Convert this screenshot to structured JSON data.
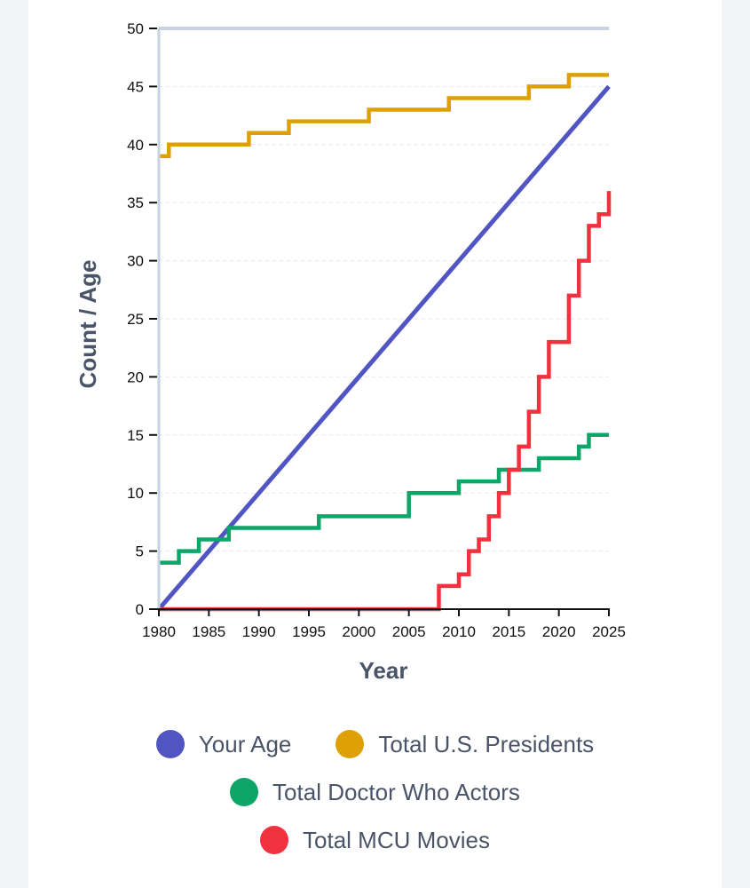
{
  "chart_data": {
    "type": "line",
    "title": "",
    "xlabel": "Year",
    "ylabel": "Count / Age",
    "xlim": [
      1980,
      2025
    ],
    "ylim": [
      0,
      50
    ],
    "x_ticks": [
      "1980",
      "1985",
      "1990",
      "1995",
      "2000",
      "2005",
      "2010",
      "2015",
      "2020",
      "2025"
    ],
    "y_ticks": [
      "0",
      "5",
      "10",
      "15",
      "20",
      "25",
      "30",
      "35",
      "40",
      "45",
      "50"
    ],
    "grid": true,
    "legend_position": "bottom",
    "series": [
      {
        "name": "Your Age",
        "color": "#5055c3",
        "step": false,
        "points": [
          [
            1980,
            0
          ],
          [
            2025,
            45
          ]
        ]
      },
      {
        "name": "Total U.S. Presidents",
        "color": "#dea006",
        "step": true,
        "points": [
          [
            1980,
            39
          ],
          [
            1981,
            40
          ],
          [
            1989,
            41
          ],
          [
            1993,
            42
          ],
          [
            2001,
            43
          ],
          [
            2009,
            44
          ],
          [
            2017,
            45
          ],
          [
            2021,
            46
          ],
          [
            2025,
            46
          ]
        ]
      },
      {
        "name": "Total Doctor Who Actors",
        "color": "#0da668",
        "step": true,
        "points": [
          [
            1980,
            4
          ],
          [
            1982,
            5
          ],
          [
            1984,
            6
          ],
          [
            1987,
            7
          ],
          [
            1996,
            8
          ],
          [
            2005,
            10
          ],
          [
            2010,
            11
          ],
          [
            2014,
            12
          ],
          [
            2018,
            13
          ],
          [
            2022,
            14
          ],
          [
            2023,
            15
          ],
          [
            2025,
            15
          ]
        ]
      },
      {
        "name": "Total MCU Movies",
        "color": "#f1313d",
        "step": true,
        "points": [
          [
            1980,
            0
          ],
          [
            2008,
            2
          ],
          [
            2010,
            3
          ],
          [
            2011,
            5
          ],
          [
            2012,
            6
          ],
          [
            2013,
            8
          ],
          [
            2014,
            10
          ],
          [
            2015,
            12
          ],
          [
            2016,
            14
          ],
          [
            2017,
            17
          ],
          [
            2018,
            20
          ],
          [
            2019,
            23
          ],
          [
            2021,
            27
          ],
          [
            2022,
            30
          ],
          [
            2023,
            33
          ],
          [
            2024,
            34
          ],
          [
            2025,
            36
          ]
        ]
      }
    ]
  },
  "legend": {
    "row1": [
      {
        "label": "Your Age",
        "color": "#5055c3"
      },
      {
        "label": "Total U.S. Presidents",
        "color": "#dea006"
      }
    ],
    "row2": [
      {
        "label": "Total Doctor Who Actors",
        "color": "#0da668"
      }
    ],
    "row3": [
      {
        "label": "Total MCU Movies",
        "color": "#f1313d"
      }
    ]
  }
}
